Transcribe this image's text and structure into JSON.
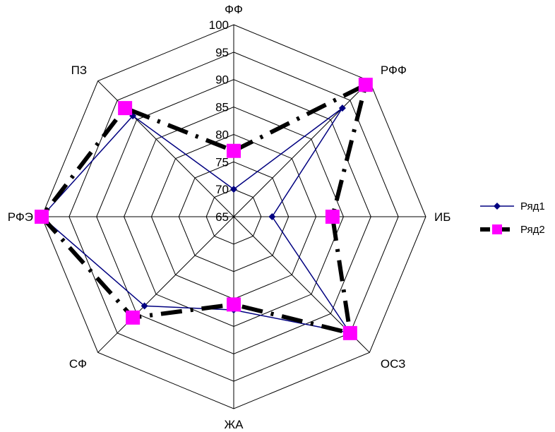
{
  "chart_data": {
    "type": "radar",
    "categories": [
      "ФФ",
      "РФФ",
      "ИБ",
      "ОСЗ",
      "ЖА",
      "СФ",
      "РФЭ",
      "ПЗ"
    ],
    "rlim": [
      65,
      100
    ],
    "ticks": [
      65,
      70,
      75,
      80,
      85,
      90,
      95,
      100
    ],
    "grid": true,
    "legend_position": "right",
    "series": [
      {
        "name": "Ряд1",
        "values": [
          70,
          93,
          72,
          95,
          82,
          88,
          100,
          91
        ],
        "color": "#000080",
        "marker": "diamond",
        "line": "solid"
      },
      {
        "name": "Ряд2",
        "values": [
          77,
          99,
          83,
          95,
          81,
          91,
          100,
          93
        ],
        "color": "#000000",
        "marker_color": "#FF00FF",
        "marker": "square",
        "line": "dash-dot"
      }
    ]
  }
}
